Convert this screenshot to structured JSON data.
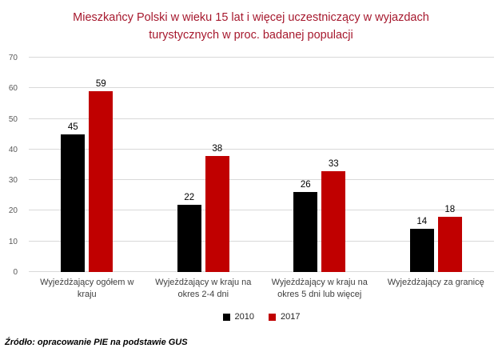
{
  "chart_data": {
    "type": "bar",
    "title": "Mieszkańcy Polski w wieku 15 lat i więcej uczestniczący w wyjazdach turystycznych w proc. badanej populacji",
    "categories": [
      "Wyjeżdżający ogółem w kraju",
      "Wyjeżdżający w kraju na okres 2-4 dni",
      "Wyjeżdżający w kraju na okres 5 dni lub więcej",
      "Wyjeżdżający za granicę"
    ],
    "series": [
      {
        "name": "2010",
        "color": "#000000",
        "values": [
          45,
          22,
          26,
          14
        ]
      },
      {
        "name": "2017",
        "color": "#c00000",
        "values": [
          59,
          38,
          33,
          18
        ]
      }
    ],
    "xlabel": "",
    "ylabel": "",
    "ylim": [
      0,
      70
    ],
    "yticks": [
      0,
      10,
      20,
      30,
      40,
      50,
      60,
      70
    ],
    "grid": true,
    "legend_position": "bottom"
  },
  "source": "Źródło: opracowanie PIE na podstawie GUS",
  "colors": {
    "title": "#a6192e",
    "grid": "#d9d9d9",
    "axis_text": "#595959",
    "category_text": "#404040"
  }
}
